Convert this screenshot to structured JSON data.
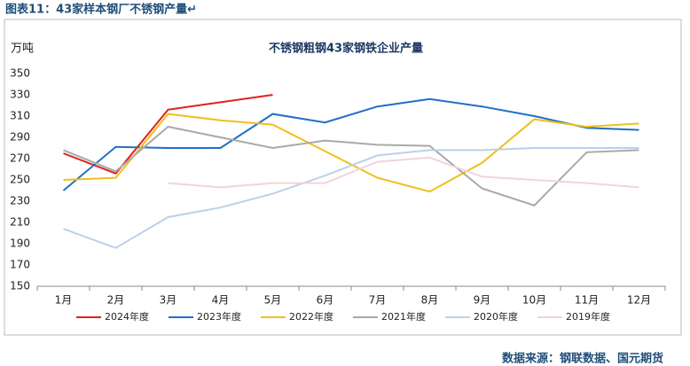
{
  "caption": "图表11：43家样本钢厂不锈钢产量↵",
  "source": "数据来源：钢联数据、国元期货",
  "chart_data": {
    "type": "line",
    "title": "不锈钢粗钢43家钢铁企业产量",
    "y_label": "万吨",
    "categories": [
      "1月",
      "2月",
      "3月",
      "4月",
      "5月",
      "6月",
      "7月",
      "8月",
      "9月",
      "10月",
      "11月",
      "12月"
    ],
    "ylim": [
      150,
      350
    ],
    "yticks": [
      150,
      170,
      190,
      210,
      230,
      250,
      270,
      290,
      310,
      330,
      350
    ],
    "grid": false,
    "legend": "bottom",
    "series": [
      {
        "name": "2024年度",
        "color": "#e0201b",
        "values": [
          275,
          256,
          316,
          323,
          330,
          null,
          null,
          null,
          null,
          null,
          null,
          null
        ]
      },
      {
        "name": "2023年度",
        "color": "#1f6fc6",
        "values": [
          240,
          281,
          280,
          280,
          312,
          304,
          319,
          326,
          319,
          310,
          299,
          297
        ]
      },
      {
        "name": "2022年度",
        "color": "#f0bf1a",
        "values": [
          250,
          252,
          312,
          306,
          302,
          277,
          252,
          239,
          266,
          307,
          300,
          303
        ]
      },
      {
        "name": "2021年度",
        "color": "#a9a9a9",
        "values": [
          278,
          258,
          300,
          290,
          280,
          287,
          283,
          282,
          242,
          226,
          276,
          278
        ]
      },
      {
        "name": "2020年度",
        "color": "#bcd0ea",
        "values": [
          204,
          186,
          215,
          224,
          237,
          254,
          273,
          278,
          278,
          280,
          280,
          280
        ]
      },
      {
        "name": "2019年度",
        "color": "#f2d4d9",
        "values": [
          null,
          null,
          247,
          243,
          247,
          247,
          267,
          271,
          253,
          250,
          247,
          243
        ]
      }
    ]
  }
}
